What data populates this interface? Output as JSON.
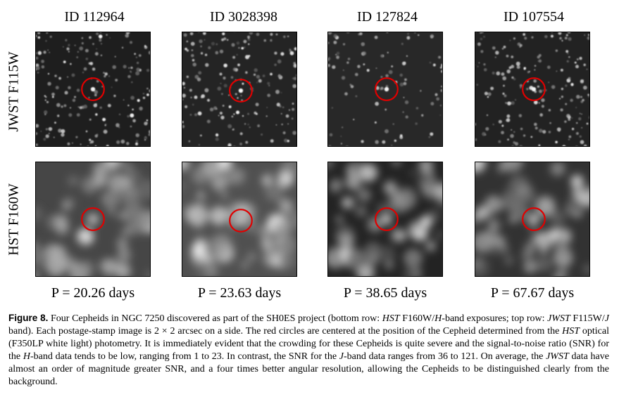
{
  "figure": {
    "columns": [
      {
        "id_label": "ID 112964",
        "period": "P = 20.26 days"
      },
      {
        "id_label": "ID 3028398",
        "period": "P = 23.63 days"
      },
      {
        "id_label": "ID 127824",
        "period": "P = 38.65 days"
      },
      {
        "id_label": "ID 107554",
        "period": "P = 67.67 days"
      }
    ],
    "rows": [
      {
        "label": "JWST F115W"
      },
      {
        "label": "HST F160W"
      }
    ],
    "circle_color": "#e00000"
  },
  "caption": {
    "label": "Figure 8.",
    "t1": " Four Cepheids in NGC 7250 discovered as part of the SH0ES project (bottom row: ",
    "i1": "HST",
    "t2": " F160W/",
    "i2": "H",
    "t3": "-band exposures; top row: ",
    "i3": "JWST",
    "t4": " F115W/",
    "i4": "J",
    "t5": " band). Each postage-stamp image is 2 × 2 arcsec on a side. The red circles are centered at the position of the Cepheid determined from the ",
    "i5": "HST",
    "t6": " optical (F350LP white light) photometry. It is immediately evident that the crowding for these Cepheids is quite severe and the signal-to-noise ratio (SNR) for the ",
    "i6": "H",
    "t7": "-band data tends to be low, ranging from 1 to 23. In contrast, the SNR for the ",
    "i7": "J",
    "t8": "-band data ranges from 36 to 121. On average, the ",
    "i8": "JWST",
    "t9": " data have almost an order of magnitude greater SNR, and a four times better angular resolution, allowing the Cepheids to be distinguished clearly from the background."
  }
}
